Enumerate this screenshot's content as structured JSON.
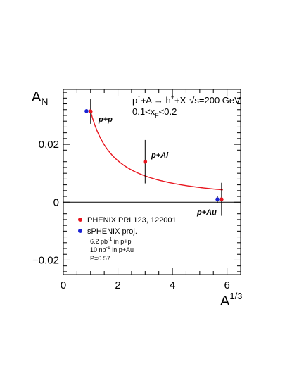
{
  "chart_data": {
    "type": "scatter",
    "xlabel": "A",
    "xlabel_sup": "1/3",
    "ylabel": "A",
    "ylabel_sub": "N",
    "xlim": [
      0,
      6.5
    ],
    "ylim": [
      -0.025,
      0.039
    ],
    "x_ticks": [
      0,
      2,
      4,
      6
    ],
    "x_tick_labels": [
      "0",
      "2",
      "4",
      "6"
    ],
    "y_ticks": [
      -0.02,
      0,
      0.02
    ],
    "y_tick_labels": [
      "−0.02",
      "0",
      "0.02"
    ],
    "zero_line": true,
    "grid": false,
    "colors": {
      "phenix": "#e8141d",
      "sphenix": "#1a22d4",
      "fit": "#e8141d"
    },
    "series": [
      {
        "name": "PHENIX PRL123, 122001",
        "color": "#e8141d",
        "points": [
          {
            "x": 1.0,
            "y": 0.0314,
            "err": 0.0043,
            "label": "p+p"
          },
          {
            "x": 3.0,
            "y": 0.014,
            "err": 0.0075,
            "label": "p+Al"
          },
          {
            "x": 5.8,
            "y": 0.001,
            "err": 0.0057,
            "label": "p+Au"
          }
        ]
      },
      {
        "name": "sPHENIX proj.",
        "color": "#1a22d4",
        "points": [
          {
            "x": 0.85,
            "y": 0.0315,
            "err": 0.0005
          },
          {
            "x": 5.65,
            "y": 0.001,
            "err": 0.0012
          }
        ]
      }
    ],
    "fit_curve": {
      "x_from": 1.0,
      "x_to": 5.85,
      "formula": "0.0314 / x^1.13"
    },
    "annotations": {
      "reaction_prefix": "p",
      "reaction_sup": "↑",
      "reaction_mid": "+A → h",
      "reaction_sup2": "+",
      "reaction_end": "+X",
      "energy": "√s=200 GeV",
      "xf_range_a": "0.1<x",
      "xf_range_sub": "F",
      "xf_range_b": "<0.2"
    },
    "legend": {
      "placement": "bottom-left",
      "entries": [
        "PHENIX PRL123, 122001",
        "sPHENIX proj."
      ],
      "notes": {
        "line1a": "6.2 pb",
        "line1sup": "-1",
        "line1b": " in p+p",
        "line2": "10 nb",
        "line2sup": "-1",
        "line2b": " in p+Au",
        "line3": "P=0.57"
      }
    }
  }
}
